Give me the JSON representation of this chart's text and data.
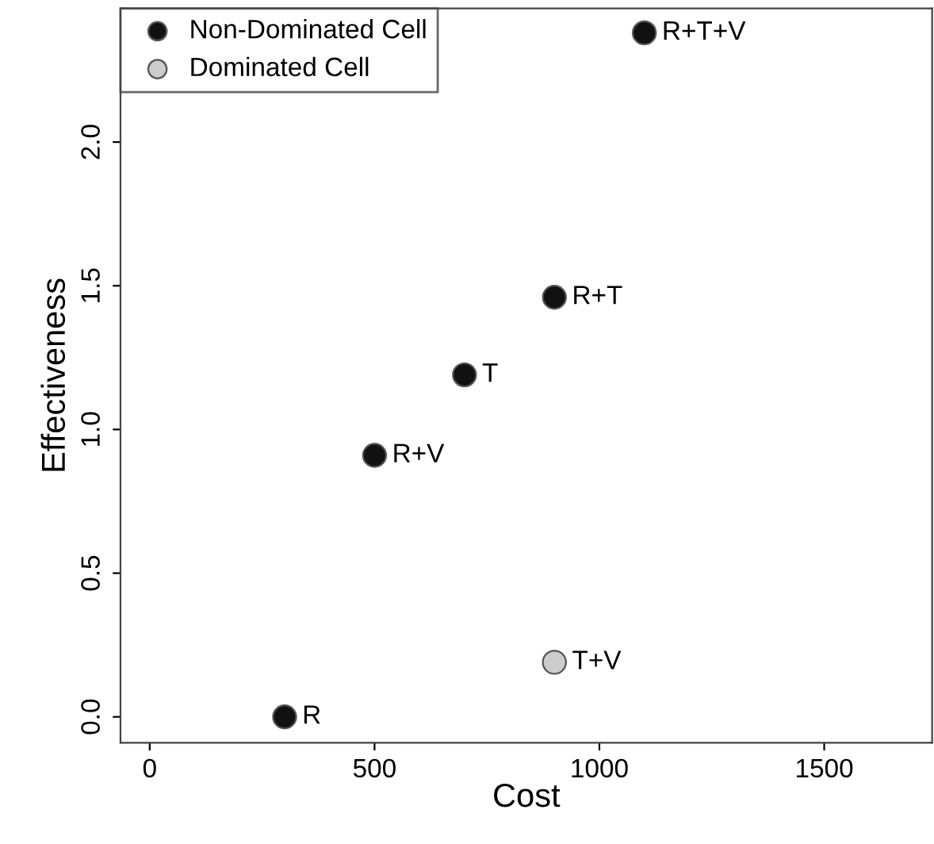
{
  "chart_data": {
    "type": "scatter",
    "xlabel": "Cost",
    "ylabel": "Effectiveness",
    "xlim": [
      -65,
      1740
    ],
    "ylim": [
      -0.09,
      2.465
    ],
    "xticks": [
      0,
      500,
      1000,
      1500
    ],
    "yticks": [
      {
        "value": 0,
        "label": "0.0"
      },
      0.5,
      {
        "value": 1,
        "label": "1.0"
      },
      1.5,
      {
        "value": 2,
        "label": "2.0"
      }
    ],
    "series": [
      {
        "name": "Non-Dominated Cell",
        "color": "#111111",
        "x": [
          300,
          500,
          700,
          900,
          1100
        ],
        "values": [
          0,
          0.91,
          1.19,
          1.46,
          2.38
        ]
      },
      {
        "name": "Dominated Cell",
        "color": "#cccccc",
        "x": [
          900
        ],
        "values": [
          0.19
        ]
      }
    ],
    "annotations": [
      {
        "text": "R",
        "x": 300,
        "y": 0
      },
      {
        "text": "R+V",
        "x": 500,
        "y": 0.91
      },
      {
        "text": "T",
        "x": 700,
        "y": 1.19
      },
      {
        "text": "R+T",
        "x": 900,
        "y": 1.46
      },
      {
        "text": "R+T+V",
        "x": 1100,
        "y": 2.38
      },
      {
        "text": "T+V",
        "x": 900,
        "y": 0.19
      }
    ],
    "marker": "circle",
    "legend": "top left",
    "grid": false
  }
}
